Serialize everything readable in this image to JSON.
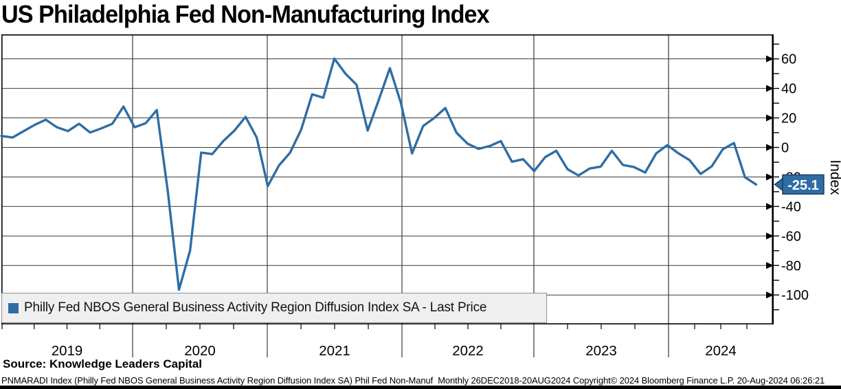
{
  "title": "US Philadelphia Fed Non-Manufacturing Index",
  "legend": {
    "label": "Philly Fed NBOS General Business Activity Region Diffusion Index SA - Last Price",
    "marker_color": "#2E6DA4"
  },
  "source_line": "Source: Knowledge Leaders Capital",
  "footer": "PNMARADI Index (Philly Fed NBOS General Business Activity Region Diffusion Index SA) Phil Fed Non-Manuf  Monthly 26DEC2018-20AUG2024 Copyright© 2024 Bloomberg Finance L.P. 20-Aug-2024 06:26:21",
  "last_price_badge": {
    "value": "-25.1",
    "bg": "#2E6DA4",
    "border": "#16395E",
    "text_color": "#FFFFFF"
  },
  "y_axis": {
    "label": "Index",
    "major_ticks": [
      60,
      40,
      20,
      0,
      -20,
      -40,
      -60,
      -80,
      -100
    ],
    "minor_tick_step": 10,
    "minor_tick_top": 70,
    "minor_tick_bottom": -110
  },
  "x_axis": {
    "year_labels": [
      "2019",
      "2020",
      "2021",
      "2022",
      "2023",
      "2024"
    ]
  },
  "chart_data": {
    "type": "line",
    "series": [
      {
        "name": "Philly Fed NBOS General Business Activity Region Diffusion Index SA - Last Price",
        "color": "#2E6DA4",
        "values": [
          7.8,
          6.7,
          11,
          15.3,
          18.8,
          13.7,
          11.1,
          16,
          10.1,
          12.9,
          16,
          27.7,
          13.7,
          16.4,
          25.3,
          -30,
          -96.4,
          -70,
          -3.5,
          -4.5,
          4.4,
          11.4,
          20.7,
          6.7,
          -26.2,
          -12.3,
          -3.7,
          11.9,
          36,
          33.7,
          60.2,
          50,
          42.5,
          11.4,
          32.3,
          53.7,
          30,
          -4.1,
          14.6,
          20,
          26.7,
          10,
          2.5,
          -1,
          1,
          4.3,
          -9.7,
          -8,
          -16,
          -6.5,
          -2.3,
          -14.7,
          -19,
          -14.3,
          -13,
          -2.3,
          -11.9,
          -13.3,
          -17,
          -4,
          1.6,
          -4,
          -8.6,
          -18,
          -12.8,
          -1.2,
          3,
          -20.2,
          -25.1
        ]
      }
    ],
    "frequency": "monthly",
    "start": "2018-12",
    "end": "2024-08",
    "last_value": -25.1,
    "title": "US Philadelphia Fed Non-Manufacturing Index",
    "ylabel": "Index",
    "ylim": [
      -110,
      70
    ],
    "grid": "horizontal lines every 20 units; vertical lines at each year start",
    "legend_position": "bottom-left inside plot"
  }
}
